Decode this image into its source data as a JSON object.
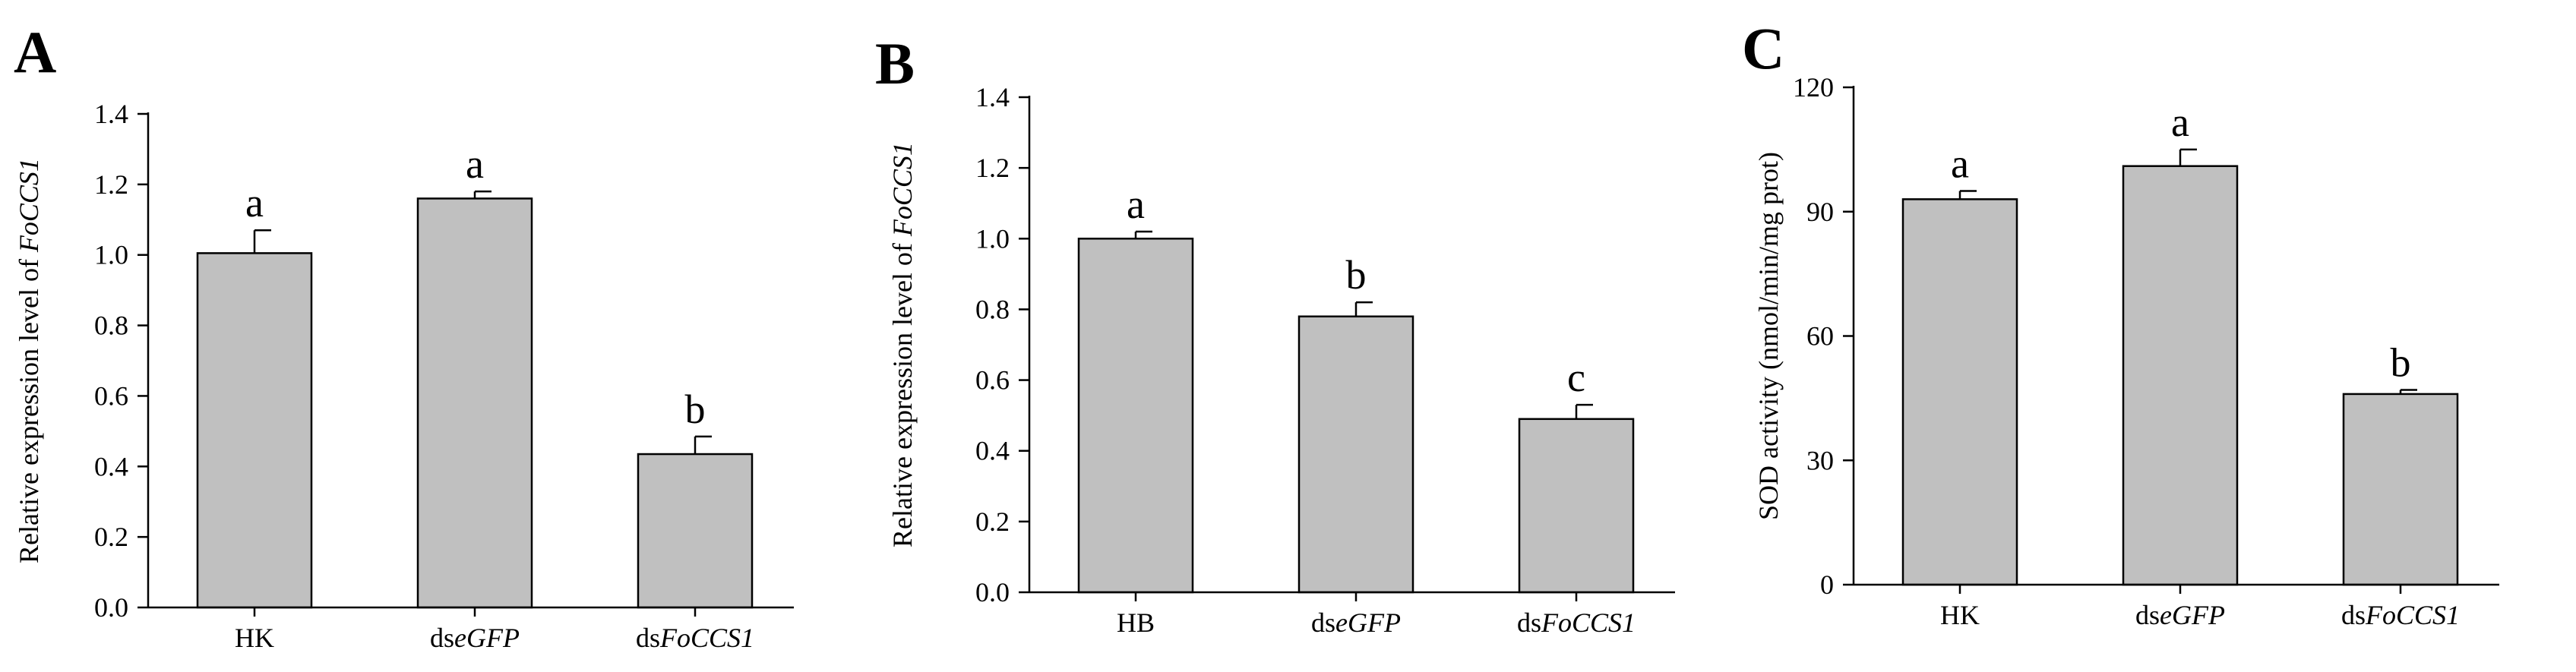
{
  "chart_data": [
    {
      "type": "bar",
      "panel_label": "A",
      "categories": [
        {
          "prefix": "HK",
          "italic": ""
        },
        {
          "prefix": "ds",
          "italic": "eGFP"
        },
        {
          "prefix": "ds",
          "italic": "FoCCS1"
        }
      ],
      "values": [
        1.005,
        1.16,
        0.435
      ],
      "errors": [
        0.065,
        0.02,
        0.05
      ],
      "significance": [
        "a",
        "a",
        "b"
      ],
      "ylabel": {
        "prefix": "Relative expression level of ",
        "italic": "FoCCS1"
      },
      "ylim": [
        0,
        1.4
      ],
      "yticks": [
        "0.0",
        "0.2",
        "0.4",
        "0.6",
        "0.8",
        "1.0",
        "1.2",
        "1.4"
      ],
      "grid": false,
      "bar_color": "#c0c0c0"
    },
    {
      "type": "bar",
      "panel_label": "B",
      "categories": [
        {
          "prefix": "HB",
          "italic": ""
        },
        {
          "prefix": "ds",
          "italic": "eGFP"
        },
        {
          "prefix": "ds",
          "italic": "FoCCS1"
        }
      ],
      "values": [
        1.0,
        0.78,
        0.49
      ],
      "errors": [
        0.02,
        0.04,
        0.04
      ],
      "significance": [
        "a",
        "b",
        "c"
      ],
      "ylabel": {
        "prefix": "Relative expression level of ",
        "italic": "FoCCS1"
      },
      "ylim": [
        0,
        1.4
      ],
      "yticks": [
        "0.0",
        "0.2",
        "0.4",
        "0.6",
        "0.8",
        "1.0",
        "1.2",
        "1.4"
      ],
      "grid": false,
      "bar_color": "#c0c0c0"
    },
    {
      "type": "bar",
      "panel_label": "C",
      "categories": [
        {
          "prefix": "HK",
          "italic": ""
        },
        {
          "prefix": "ds",
          "italic": "eGFP"
        },
        {
          "prefix": "ds",
          "italic": "FoCCS1"
        }
      ],
      "values": [
        93,
        101,
        46
      ],
      "errors": [
        2,
        4,
        1
      ],
      "significance": [
        "a",
        "a",
        "b"
      ],
      "ylabel": {
        "prefix": "SOD activity (nmol/min/mg prot)",
        "italic": ""
      },
      "ylim": [
        0,
        120
      ],
      "yticks": [
        "0",
        "30",
        "60",
        "90",
        "120"
      ],
      "grid": false,
      "bar_color": "#c0c0c0"
    }
  ]
}
